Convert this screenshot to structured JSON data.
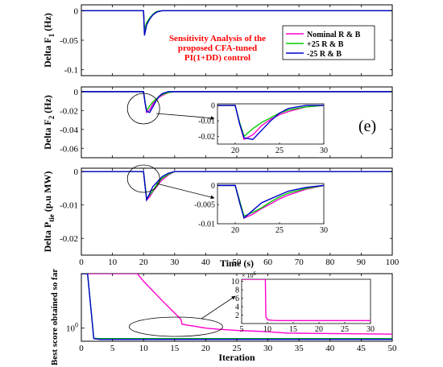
{
  "chart_data": [
    {
      "type": "line",
      "ylabel": "Delta F",
      "ylabel_sub": "1",
      "ylabel_unit": " (Hz)",
      "xlim": [
        0,
        100
      ],
      "ylim": [
        -0.11,
        0.01
      ],
      "yticks": [
        0,
        -0.05,
        -0.1
      ],
      "ytick_labels": [
        "0",
        "-0.05",
        "-0.1"
      ],
      "xticks": [
        0,
        10,
        20,
        30,
        40,
        50,
        60,
        70,
        80,
        90,
        100
      ],
      "annotation": [
        "Sensitivity Analysis of the",
        "proposed CFA-tuned",
        "PI(1+DD) control"
      ],
      "legend": {
        "position": "top-right",
        "entries": [
          "Nominal R & B",
          "+25 R & B",
          "-25 R & B"
        ],
        "colors": [
          "#ff00cc",
          "#00cc00",
          "#0000cc"
        ]
      },
      "series": [
        {
          "name": "Nominal R & B",
          "color": "#ff00cc",
          "x": [
            0,
            20,
            20.3,
            21,
            22,
            23,
            24,
            25,
            26,
            27,
            100
          ],
          "y": [
            0,
            0,
            -0.036,
            -0.021,
            -0.013,
            -0.007,
            -0.003,
            -0.001,
            0,
            0,
            0
          ]
        },
        {
          "name": "+25 R & B",
          "color": "#00cc00",
          "x": [
            0,
            20,
            20.3,
            21,
            22,
            23,
            24,
            25,
            26,
            27,
            100
          ],
          "y": [
            0,
            0,
            -0.033,
            -0.02,
            -0.012,
            -0.006,
            -0.002,
            -0.0005,
            0,
            0,
            0
          ]
        },
        {
          "name": "-25 R & B",
          "color": "#0000cc",
          "x": [
            0,
            20,
            20.3,
            21,
            22,
            23,
            24,
            25,
            26,
            27,
            100
          ],
          "y": [
            0,
            0,
            -0.042,
            -0.024,
            -0.014,
            -0.007,
            -0.003,
            -0.001,
            0,
            0,
            0
          ]
        }
      ]
    },
    {
      "type": "line",
      "ylabel": "Delta F",
      "ylabel_sub": "2",
      "ylabel_unit": " (Hz)",
      "xlim": [
        0,
        100
      ],
      "ylim": [
        -0.07,
        0.005
      ],
      "yticks": [
        0,
        -0.02,
        -0.04,
        -0.06
      ],
      "ytick_labels": [
        "0",
        "-0.02",
        "-0.04",
        "-0.06"
      ],
      "xticks": [
        0,
        10,
        20,
        30,
        40,
        50,
        60,
        70,
        80,
        90,
        100
      ],
      "panel_label": "(e)",
      "series": [
        {
          "name": "Nominal R & B",
          "color": "#ff00cc",
          "x": [
            0,
            20,
            20.5,
            21,
            22,
            23,
            24,
            25,
            26,
            28,
            30,
            100
          ],
          "y": [
            0,
            0,
            -0.012,
            -0.022,
            -0.019,
            -0.013,
            -0.009,
            -0.006,
            -0.004,
            -0.001,
            0,
            0
          ]
        },
        {
          "name": "+25 R & B",
          "color": "#00cc00",
          "x": [
            0,
            20,
            20.5,
            21,
            22,
            23,
            24,
            25,
            26,
            28,
            30,
            100
          ],
          "y": [
            0,
            0,
            -0.011,
            -0.02,
            -0.015,
            -0.011,
            -0.008,
            -0.005,
            -0.003,
            -0.001,
            0,
            0
          ]
        },
        {
          "name": "-25 R & B",
          "color": "#0000cc",
          "x": [
            0,
            20,
            20.5,
            21,
            22,
            23,
            24,
            25,
            26,
            28,
            30,
            100
          ],
          "y": [
            0,
            0,
            -0.012,
            -0.021,
            -0.022,
            -0.016,
            -0.01,
            -0.005,
            -0.002,
            0,
            0,
            0
          ]
        }
      ],
      "inset": {
        "xlim": [
          18,
          30
        ],
        "ylim": [
          -0.025,
          0.001
        ],
        "yticks": [
          0,
          -0.01,
          -0.02
        ],
        "ytick_labels": [
          "0",
          "-0.01",
          "-0.02"
        ],
        "xticks": [
          20,
          25,
          30
        ],
        "xtick_labels": [
          "20",
          "25",
          "30"
        ]
      }
    },
    {
      "type": "line",
      "ylabel": "Delta P",
      "ylabel_sub": "tie",
      "ylabel_unit": " (p.u MW)",
      "xlabel": "Time (s)",
      "xlim": [
        0,
        100
      ],
      "ylim": [
        -0.025,
        0.001
      ],
      "yticks": [
        0,
        -0.01,
        -0.02
      ],
      "ytick_labels": [
        "0",
        "-0.01",
        "-0.02"
      ],
      "xticks": [
        0,
        10,
        20,
        30,
        40,
        50,
        60,
        70,
        80,
        90,
        100
      ],
      "xtick_labels": [
        "0",
        "10",
        "20",
        "30",
        "40",
        "50",
        "60",
        "70",
        "80",
        "90",
        "100"
      ],
      "series": [
        {
          "name": "Nominal R & B",
          "color": "#ff00cc",
          "x": [
            0,
            20,
            20.5,
            21,
            22,
            23,
            24,
            25,
            26,
            28,
            30,
            100
          ],
          "y": [
            0,
            0,
            -0.004,
            -0.0085,
            -0.0075,
            -0.006,
            -0.0048,
            -0.0035,
            -0.0025,
            -0.001,
            0,
            0
          ]
        },
        {
          "name": "+25 R & B",
          "color": "#00cc00",
          "x": [
            0,
            20,
            20.5,
            21,
            22,
            23,
            24,
            25,
            26,
            28,
            30,
            100
          ],
          "y": [
            0,
            0,
            -0.004,
            -0.008,
            -0.007,
            -0.0058,
            -0.0043,
            -0.003,
            -0.002,
            -0.0008,
            0,
            0
          ]
        },
        {
          "name": "-25 R & B",
          "color": "#0000cc",
          "x": [
            0,
            20,
            20.5,
            21,
            22,
            23,
            24,
            25,
            26,
            28,
            30,
            100
          ],
          "y": [
            0,
            0,
            -0.0045,
            -0.0085,
            -0.0065,
            -0.0045,
            -0.0035,
            -0.0025,
            -0.0015,
            -0.0005,
            0,
            0
          ]
        }
      ],
      "inset": {
        "xlim": [
          18,
          30
        ],
        "ylim": [
          -0.01,
          0.0005
        ],
        "yticks": [
          0,
          -0.005,
          -0.01
        ],
        "ytick_labels": [
          "0",
          "-0.005",
          "-0.01"
        ],
        "xticks": [
          20,
          25,
          30
        ],
        "xtick_labels": [
          "20",
          "25",
          "30"
        ]
      }
    },
    {
      "type": "line",
      "ylabel": "Best score obtained so far",
      "xlabel": "Iteration",
      "yscale": "log",
      "xlim": [
        0,
        50
      ],
      "ylim": [
        0.55,
        12
      ],
      "ytick_main": "10",
      "ytick_main_exp": "0",
      "xticks": [
        0,
        5,
        10,
        15,
        20,
        25,
        30,
        35,
        40,
        45,
        50
      ],
      "xtick_labels": [
        "0",
        "5",
        "10",
        "15",
        "20",
        "25",
        "30",
        "35",
        "40",
        "45",
        "50"
      ],
      "series": [
        {
          "name": "Nominal R & B",
          "color": "#ff00cc",
          "x": [
            0,
            9,
            10,
            13,
            16,
            16.2,
            17,
            18,
            20,
            22,
            25,
            28,
            30,
            33,
            36,
            40,
            45,
            50
          ],
          "y": [
            12,
            12,
            8.5,
            3.5,
            1.5,
            1.2,
            1.15,
            1.1,
            1.0,
            0.95,
            0.9,
            0.87,
            0.85,
            0.8,
            0.79,
            0.78,
            0.77,
            0.76
          ]
        },
        {
          "name": "+25 R & B",
          "color": "#00cc00",
          "x": [
            0,
            1,
            2,
            3,
            50
          ],
          "y": [
            12,
            12,
            0.63,
            0.62,
            0.62
          ]
        },
        {
          "name": "-25 R & B",
          "color": "#0000cc",
          "x": [
            0,
            1,
            2,
            3,
            50
          ],
          "y": [
            12,
            12,
            0.62,
            0.6,
            0.6
          ]
        }
      ],
      "inset": {
        "xlim": [
          5,
          30
        ],
        "ylim": [
          0,
          10.5
        ],
        "exponent_label": "× 10",
        "exponent_sup": "6",
        "yticks": [
          2,
          4,
          6,
          8,
          10
        ],
        "ytick_labels": [
          "2",
          "4",
          "6",
          "8",
          "10"
        ],
        "xticks": [
          5,
          10,
          15,
          20,
          25,
          30
        ],
        "xtick_labels": [
          "5",
          "10",
          "15",
          "20",
          "25",
          "30"
        ],
        "series": [
          {
            "name": "Nominal R & B",
            "color": "#ff00cc",
            "x": [
              5,
              9.6,
              9.7,
              10,
              11,
              12,
              30
            ],
            "y": [
              10.5,
              10.5,
              1.6,
              0.9,
              0.75,
              0.7,
              0.7
            ]
          }
        ]
      }
    }
  ]
}
